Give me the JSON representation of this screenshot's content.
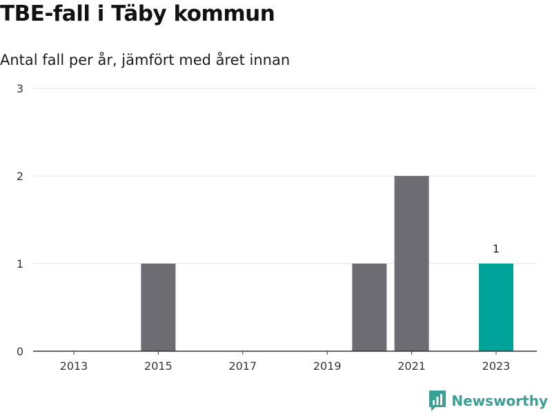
{
  "chart_data": {
    "type": "bar",
    "title": "TBE-fall i Täby kommun",
    "subtitle": "Antal fall per år, jämfört med året innan",
    "categories": [
      "2013",
      "2014",
      "2015",
      "2016",
      "2017",
      "2018",
      "2019",
      "2020",
      "2021",
      "2022",
      "2023"
    ],
    "values": [
      0,
      0,
      1,
      0,
      0,
      0,
      0,
      1,
      2,
      0,
      1
    ],
    "x_tick_labels": [
      "2013",
      "2015",
      "2017",
      "2019",
      "2021",
      "2023"
    ],
    "y_ticks": [
      0,
      1,
      2,
      3
    ],
    "ylim": [
      0,
      3
    ],
    "highlight_category": "2023",
    "highlight_label": "1",
    "grid": true,
    "colors": {
      "bar": "#6d6c72",
      "highlight": "#00a39a",
      "grid": "#e0e0e0",
      "axis": "#333333"
    }
  },
  "brand": {
    "name": "Newsworthy",
    "icon": "newsworthy-logo-icon",
    "color": "#3aa095"
  }
}
